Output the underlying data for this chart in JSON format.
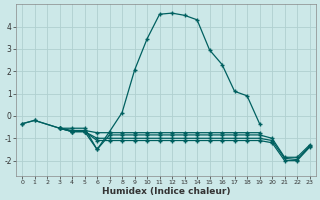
{
  "xlabel": "Humidex (Indice chaleur)",
  "xlim": [
    -0.5,
    23.5
  ],
  "ylim": [
    -2.7,
    5.0
  ],
  "yticks": [
    -2,
    -1,
    0,
    1,
    2,
    3,
    4
  ],
  "xticks": [
    0,
    1,
    2,
    3,
    4,
    5,
    6,
    7,
    8,
    9,
    10,
    11,
    12,
    13,
    14,
    15,
    16,
    17,
    18,
    19,
    20,
    21,
    22,
    23
  ],
  "bg_color": "#cce8e8",
  "grid_color": "#b0d0d0",
  "line_color": "#006060",
  "lines": [
    {
      "x": [
        0,
        1,
        3,
        4,
        5,
        6,
        7,
        8,
        9,
        10,
        11,
        12,
        13,
        14,
        15,
        16,
        17,
        18,
        19
      ],
      "y": [
        -0.35,
        -0.2,
        -0.55,
        -0.55,
        -0.55,
        -1.5,
        -0.7,
        0.15,
        2.05,
        3.45,
        4.55,
        4.6,
        4.5,
        4.3,
        2.95,
        2.3,
        1.1,
        0.9,
        -0.35
      ]
    },
    {
      "x": [
        0,
        1,
        3,
        4,
        5,
        6,
        7,
        8,
        9,
        10,
        11,
        12,
        13,
        14,
        15,
        16,
        17,
        18,
        19
      ],
      "y": [
        -0.35,
        -0.2,
        -0.55,
        -0.65,
        -0.65,
        -0.75,
        -0.75,
        -0.75,
        -0.75,
        -0.75,
        -0.75,
        -0.75,
        -0.75,
        -0.75,
        -0.75,
        -0.75,
        -0.75,
        -0.75,
        -0.75
      ]
    },
    {
      "x": [
        3,
        4,
        5,
        6,
        7,
        8,
        9,
        10,
        11,
        12,
        13,
        14,
        15,
        16,
        17,
        18,
        19,
        20,
        21,
        22,
        23
      ],
      "y": [
        -0.55,
        -0.7,
        -0.7,
        -1.5,
        -0.85,
        -0.85,
        -0.85,
        -0.85,
        -0.85,
        -0.85,
        -0.85,
        -0.85,
        -0.85,
        -0.85,
        -0.85,
        -0.85,
        -0.85,
        -1.0,
        -1.85,
        -1.85,
        -1.3
      ]
    },
    {
      "x": [
        3,
        4,
        5,
        6,
        7,
        8,
        9,
        10,
        11,
        12,
        13,
        14,
        15,
        16,
        17,
        18,
        19,
        20,
        21,
        22,
        23
      ],
      "y": [
        -0.55,
        -0.7,
        -0.7,
        -1.0,
        -1.0,
        -1.0,
        -1.0,
        -1.0,
        -1.0,
        -1.0,
        -1.0,
        -1.0,
        -1.0,
        -1.0,
        -1.0,
        -1.0,
        -1.0,
        -1.1,
        -1.9,
        -1.95,
        -1.35
      ]
    },
    {
      "x": [
        3,
        4,
        5,
        6,
        7,
        8,
        9,
        10,
        11,
        12,
        13,
        14,
        15,
        16,
        17,
        18,
        19,
        20,
        21,
        22,
        23
      ],
      "y": [
        -0.55,
        -0.7,
        -0.7,
        -1.1,
        -1.1,
        -1.1,
        -1.1,
        -1.1,
        -1.1,
        -1.1,
        -1.1,
        -1.1,
        -1.1,
        -1.1,
        -1.1,
        -1.1,
        -1.1,
        -1.2,
        -2.0,
        -2.0,
        -1.4
      ]
    }
  ]
}
